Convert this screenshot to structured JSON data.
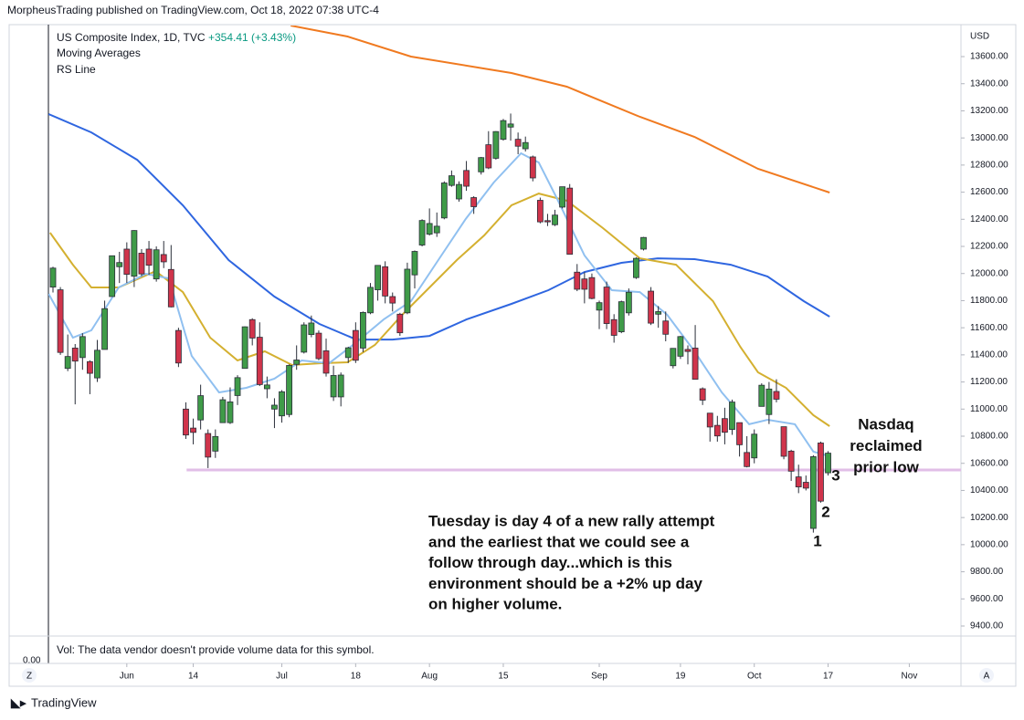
{
  "header": "MorpheusTrading published on TradingView.com, Oct 18, 2022 07:38 UTC-4",
  "footer": "TradingView",
  "chart_data": {
    "type": "candlestick",
    "symbol": "US Composite Index, 1D, TVC",
    "change": "+354.41 (+3.43%)",
    "indicators": [
      "Moving Averages",
      "RS Line"
    ],
    "currency": "USD",
    "volume_note": "Vol: The data vendor doesn't provide volume data for this symbol.",
    "volume_axis": {
      "value": 0,
      "label": "0.00"
    },
    "buttons": [
      "Z",
      "A"
    ],
    "up_color": "#3f9b48",
    "down_color": "#d0344b",
    "open": [
      11900,
      11880,
      11300,
      11450,
      11380,
      11350,
      11230,
      11440,
      11830,
      12050,
      12180,
      11980,
      12150,
      12180,
      11960,
      12140,
      12030,
      11580,
      11000,
      10860,
      10920,
      10820,
      10690,
      10900,
      10900,
      11100,
      11300,
      11660,
      11530,
      11150,
      11000,
      10950,
      10960,
      11330,
      11420,
      11550,
      11560,
      11430,
      11090,
      11090,
      11380,
      11580,
      11450,
      11710,
      11880,
      12050,
      11830,
      11700,
      11710,
      11990,
      12210,
      12290,
      12300,
      12410,
      12650,
      12550,
      12760,
      12560,
      12750,
      12950,
      12850,
      12990,
      13080,
      12990,
      12920,
      12860,
      12540,
      12390,
      12360,
      12490,
      12630,
      12010,
      11960,
      11970,
      11730,
      11900,
      11660,
      11570,
      11710,
      11970,
      12180,
      11870,
      11700,
      11650,
      11320,
      11390,
      11440,
      11450,
      11150,
      10970,
      10880,
      10930,
      10850,
      10900,
      10680,
      10640,
      11020,
      10960,
      11130,
      10870,
      10690,
      10500,
      10460,
      10120,
      10750,
      10530
    ],
    "high": [
      12050,
      11900,
      11550,
      11480,
      11560,
      11360,
      11510,
      11800,
      12131,
      12160,
      12230,
      12320,
      12180,
      12240,
      12200,
      12240,
      12210,
      11600,
      11050,
      10930,
      11180,
      10850,
      10850,
      11090,
      11160,
      11250,
      11610,
      11670,
      11640,
      11240,
      11080,
      11140,
      11330,
      11470,
      11640,
      11690,
      11580,
      11520,
      11320,
      11270,
      11460,
      11640,
      11720,
      11930,
      12060,
      12090,
      11860,
      11710,
      12080,
      12170,
      12400,
      12480,
      12450,
      12680,
      12760,
      12680,
      12830,
      12570,
      12860,
      13050,
      13050,
      13140,
      13180,
      13040,
      13010,
      12870,
      12560,
      12440,
      12470,
      12640,
      12660,
      12070,
      12010,
      12000,
      11800,
      11940,
      11700,
      11800,
      11890,
      12120,
      12270,
      11900,
      11760,
      11720,
      11450,
      11540,
      11470,
      11620,
      11160,
      10970,
      10950,
      11010,
      11070,
      10900,
      10800,
      10850,
      11190,
      11200,
      11220,
      10870,
      10700,
      10590,
      10510,
      10660,
      10760,
      10690
    ],
    "low": [
      11860,
      11400,
      11280,
      11035,
      11290,
      11110,
      11200,
      11440,
      11830,
      11930,
      11930,
      11900,
      11980,
      11990,
      11940,
      12040,
      11750,
      11310,
      10780,
      10740,
      10850,
      10565,
      10640,
      10900,
      10890,
      11030,
      11300,
      11470,
      11170,
      11080,
      10860,
      10900,
      10940,
      11290,
      11410,
      11530,
      11360,
      11240,
      11060,
      11020,
      11340,
      11340,
      11420,
      11700,
      11800,
      11780,
      11720,
      11540,
      11700,
      11890,
      12200,
      12280,
      12270,
      12400,
      12640,
      12530,
      12610,
      12440,
      12730,
      12770,
      12840,
      12980,
      12980,
      12880,
      12900,
      12680,
      12370,
      12350,
      12350,
      12480,
      12140,
      11870,
      11780,
      11810,
      11590,
      11590,
      11490,
      11560,
      11690,
      11960,
      12170,
      11620,
      11600,
      11500,
      11300,
      11370,
      11330,
      11220,
      11030,
      10760,
      10760,
      10740,
      10810,
      10650,
      10570,
      10600,
      11020,
      10890,
      11050,
      10630,
      10470,
      10380,
      10400,
      10089,
      10310,
      10510
    ],
    "close": [
      12040,
      11418,
      11388,
      11354,
      11535,
      11264,
      11434,
      11741,
      12131,
      12081,
      11994,
      12317,
      11997,
      12061,
      12175,
      12086,
      11754,
      11340,
      10809,
      10828,
      11099,
      10646,
      10798,
      11069,
      11053,
      11232,
      11607,
      11524,
      11181,
      11178,
      11029,
      11128,
      11322,
      11362,
      11621,
      11635,
      11372,
      11265,
      11248,
      11251,
      11452,
      11360,
      11713,
      11898,
      12060,
      11834,
      11782,
      11563,
      12032,
      12163,
      12391,
      12369,
      12349,
      12668,
      12721,
      12657,
      12644,
      12493,
      12855,
      12779,
      13047,
      13128,
      13103,
      12939,
      12966,
      12705,
      12381,
      12381,
      12431,
      12640,
      12142,
      11884,
      11884,
      11816,
      11785,
      11631,
      11544,
      11792,
      11862,
      12112,
      12266,
      11634,
      11719,
      11552,
      11448,
      11535,
      11425,
      11220,
      11066,
      10868,
      10802,
      10829,
      11052,
      10737,
      10576,
      10815,
      11176,
      11148,
      11073,
      10652,
      10542,
      10426,
      10417,
      10649,
      10321,
      10675
    ],
    "series": [
      {
        "color": "#f07a20",
        "x": [
          32.2,
          39.9,
          48.5,
          58.4,
          62.1,
          69.6,
          79.5,
          86.9,
          95.5,
          105.2
        ],
        "values": [
          13829,
          13748,
          13600,
          13512,
          13479,
          13378,
          13156,
          13008,
          12772,
          12597
        ]
      },
      {
        "color": "#2f66e0",
        "x": [
          -0.6,
          5.2,
          11.4,
          17.6,
          23.8,
          30,
          36.1,
          41.1,
          46,
          51,
          56,
          62.1,
          67.1,
          72,
          77,
          81.9,
          86.9,
          91.8,
          96.8,
          101.7,
          105.2
        ],
        "values": [
          13176,
          13041,
          12839,
          12503,
          12099,
          11830,
          11628,
          11513,
          11513,
          11540,
          11661,
          11776,
          11877,
          12011,
          12079,
          12112,
          12106,
          12065,
          11978,
          11796,
          11682
        ]
      },
      {
        "color": "#d4b030",
        "x": [
          -0.4,
          2.7,
          5.2,
          8.9,
          13.9,
          17.6,
          21.3,
          25,
          28.7,
          32.4,
          36.1,
          39.9,
          43.6,
          47.3,
          51,
          54.7,
          58.4,
          62.1,
          65.8,
          69.6,
          74.5,
          79.5,
          84.4,
          89.4,
          93.1,
          95.5,
          99.3,
          103,
          105.2
        ],
        "values": [
          12301,
          12065,
          11897,
          11897,
          12018,
          11863,
          11527,
          11359,
          11426,
          11325,
          11338,
          11345,
          11473,
          11695,
          11897,
          12099,
          12281,
          12503,
          12590,
          12537,
          12335,
          12112,
          12065,
          11796,
          11460,
          11271,
          11157,
          10955,
          10874
        ]
      },
      {
        "color": "#90c0f0",
        "x": [
          -0.6,
          2.7,
          5.2,
          8.9,
          12.6,
          15.7,
          18.8,
          22.5,
          26.2,
          30,
          33.7,
          37.4,
          41.1,
          44.8,
          48.5,
          52.2,
          55.9,
          59.7,
          63.4,
          65.8,
          68.3,
          72,
          75.7,
          79.5,
          83.2,
          86.9,
          90.6,
          94.3,
          96.8,
          100.5,
          103,
          105.2
        ],
        "values": [
          11850,
          11527,
          11581,
          11897,
          11998,
          11964,
          11392,
          11123,
          11157,
          11224,
          11359,
          11338,
          11493,
          11661,
          11796,
          12099,
          12402,
          12671,
          12887,
          12819,
          12550,
          12133,
          11877,
          11863,
          11695,
          11426,
          11123,
          10888,
          10921,
          10888,
          10686,
          10652
        ]
      }
    ],
    "support_line": {
      "y": 10551,
      "x_from": 18.1,
      "color": "#e1bee7"
    },
    "ylim": [
      9326,
      13829
    ],
    "yticks": [
      {
        "value": 9400,
        "label": "9400.00"
      },
      {
        "value": 9600,
        "label": "9600.00"
      },
      {
        "value": 9800,
        "label": "9800.00"
      },
      {
        "value": 10000,
        "label": "10000.00"
      },
      {
        "value": 10200,
        "label": "10200.00"
      },
      {
        "value": 10400,
        "label": "10400.00"
      },
      {
        "value": 10600,
        "label": "10600.00"
      },
      {
        "value": 10800,
        "label": "10800.00"
      },
      {
        "value": 11000,
        "label": "11000.00"
      },
      {
        "value": 11200,
        "label": "11200.00"
      },
      {
        "value": 11400,
        "label": "11400.00"
      },
      {
        "value": 11600,
        "label": "11600.00"
      },
      {
        "value": 11800,
        "label": "11800.00"
      },
      {
        "value": 12000,
        "label": "12000.00"
      },
      {
        "value": 12200,
        "label": "12200.00"
      },
      {
        "value": 12400,
        "label": "12400.00"
      },
      {
        "value": 12600,
        "label": "12600.00"
      },
      {
        "value": 12800,
        "label": "12800.00"
      },
      {
        "value": 13000,
        "label": "13000.00"
      },
      {
        "value": 13200,
        "label": "13200.00"
      },
      {
        "value": 13400,
        "label": "13400.00"
      },
      {
        "value": 13600,
        "label": "13600.00"
      }
    ],
    "xlim": [
      -0.62,
      123
    ],
    "xticks": [
      {
        "value": 10,
        "label": "Jun"
      },
      {
        "value": 19,
        "label": "14"
      },
      {
        "value": 31,
        "label": "Jul"
      },
      {
        "value": 41,
        "label": "18"
      },
      {
        "value": 51,
        "label": "Aug"
      },
      {
        "value": 61,
        "label": "15"
      },
      {
        "value": 74,
        "label": "Sep"
      },
      {
        "value": 85,
        "label": "19"
      },
      {
        "value": 95,
        "label": "Oct"
      },
      {
        "value": 105,
        "label": "17"
      },
      {
        "value": 116,
        "label": "Nov"
      }
    ],
    "grid": false,
    "annotations": {
      "nasdaq": [
        "Nasdaq",
        "reclaimed",
        "prior low"
      ],
      "counts": [
        "1",
        "2",
        "3"
      ],
      "note": [
        "Tuesday is day 4 of a new rally attempt",
        "and the earliest that we could see a",
        "follow through day...which is this",
        "environment should be a +2% up day",
        "on higher volume."
      ]
    }
  }
}
